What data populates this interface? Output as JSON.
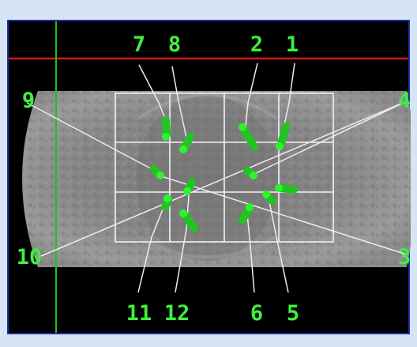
{
  "labels": {
    "top": [
      "7",
      "8",
      "2",
      "1"
    ],
    "left": [
      "9",
      "10"
    ],
    "right": [
      "4",
      "3"
    ],
    "bottom": [
      "11",
      "12",
      "6",
      "5"
    ]
  },
  "colors": {
    "background": "#d6e4f4",
    "frame": "#000000",
    "frame_border": "#1b2fa0",
    "horizontal_cursor": "#d11a1a",
    "vertical_cursor": "#19c619",
    "label_text": "#3ef03e",
    "marker": "#21c421",
    "marker_tip": "#2df52d",
    "grid_lines": "#f2f2f2"
  },
  "icons": {
    "markers": "green-capsule-marker"
  }
}
